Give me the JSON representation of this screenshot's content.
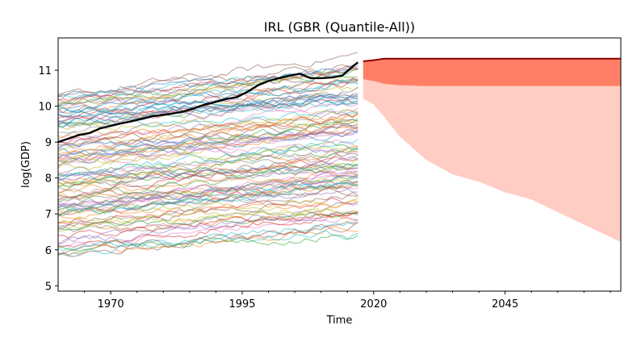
{
  "chart_data": {
    "type": "line",
    "title": "IRL (GBR (Quantile-All))",
    "xlabel": "Time",
    "ylabel": "log(GDP)",
    "xlim": [
      1960,
      2067
    ],
    "ylim": [
      4.85,
      11.9
    ],
    "x_ticks": [
      1970,
      1995,
      2020,
      2045
    ],
    "y_ticks": [
      5,
      6,
      7,
      8,
      9,
      10,
      11
    ],
    "grid": false,
    "legend": "none",
    "colors": {
      "highlight": "#000000",
      "forecast_line": "#8b0000",
      "band_inner": "#ff7f66",
      "band_outer": "#ffcdc4",
      "background_palette": [
        "#1f77b4",
        "#ff7f0e",
        "#2ca02c",
        "#d62728",
        "#9467bd",
        "#8c564b",
        "#e377c2",
        "#7f7f7f",
        "#bcbd22",
        "#17becf"
      ]
    },
    "highlight_series": {
      "x": [
        1960,
        1962,
        1964,
        1966,
        1968,
        1970,
        1972,
        1974,
        1976,
        1978,
        1980,
        1982,
        1984,
        1986,
        1988,
        1990,
        1992,
        1994,
        1996,
        1998,
        2000,
        2002,
        2004,
        2006,
        2008,
        2010,
        2012,
        2014,
        2016,
        2017
      ],
      "y": [
        9.0,
        9.1,
        9.2,
        9.25,
        9.38,
        9.45,
        9.52,
        9.58,
        9.65,
        9.72,
        9.76,
        9.8,
        9.86,
        9.95,
        10.05,
        10.12,
        10.2,
        10.25,
        10.4,
        10.58,
        10.7,
        10.78,
        10.85,
        10.9,
        10.78,
        10.78,
        10.8,
        10.85,
        11.1,
        11.22
      ]
    },
    "forecast": {
      "x": [
        2018,
        2020,
        2022,
        2025,
        2030,
        2035,
        2040,
        2045,
        2050,
        2055,
        2060,
        2067
      ],
      "median": [
        11.25,
        11.28,
        11.32,
        11.32,
        11.32,
        11.32,
        11.32,
        11.32,
        11.32,
        11.32,
        11.32,
        11.32
      ],
      "inner_upper": [
        11.25,
        11.3,
        11.33,
        11.33,
        11.33,
        11.33,
        11.33,
        11.33,
        11.33,
        11.33,
        11.33,
        11.33
      ],
      "inner_lower": [
        10.75,
        10.7,
        10.62,
        10.58,
        10.56,
        10.56,
        10.56,
        10.56,
        10.56,
        10.56,
        10.56,
        10.56
      ],
      "outer_upper": [
        10.75,
        10.7,
        10.62,
        10.58,
        10.56,
        10.56,
        10.56,
        10.56,
        10.56,
        10.56,
        10.56,
        10.56
      ],
      "outer_lower": [
        10.2,
        10.05,
        9.7,
        9.15,
        8.5,
        8.1,
        7.9,
        7.6,
        7.4,
        7.05,
        6.7,
        6.22
      ]
    }
  }
}
